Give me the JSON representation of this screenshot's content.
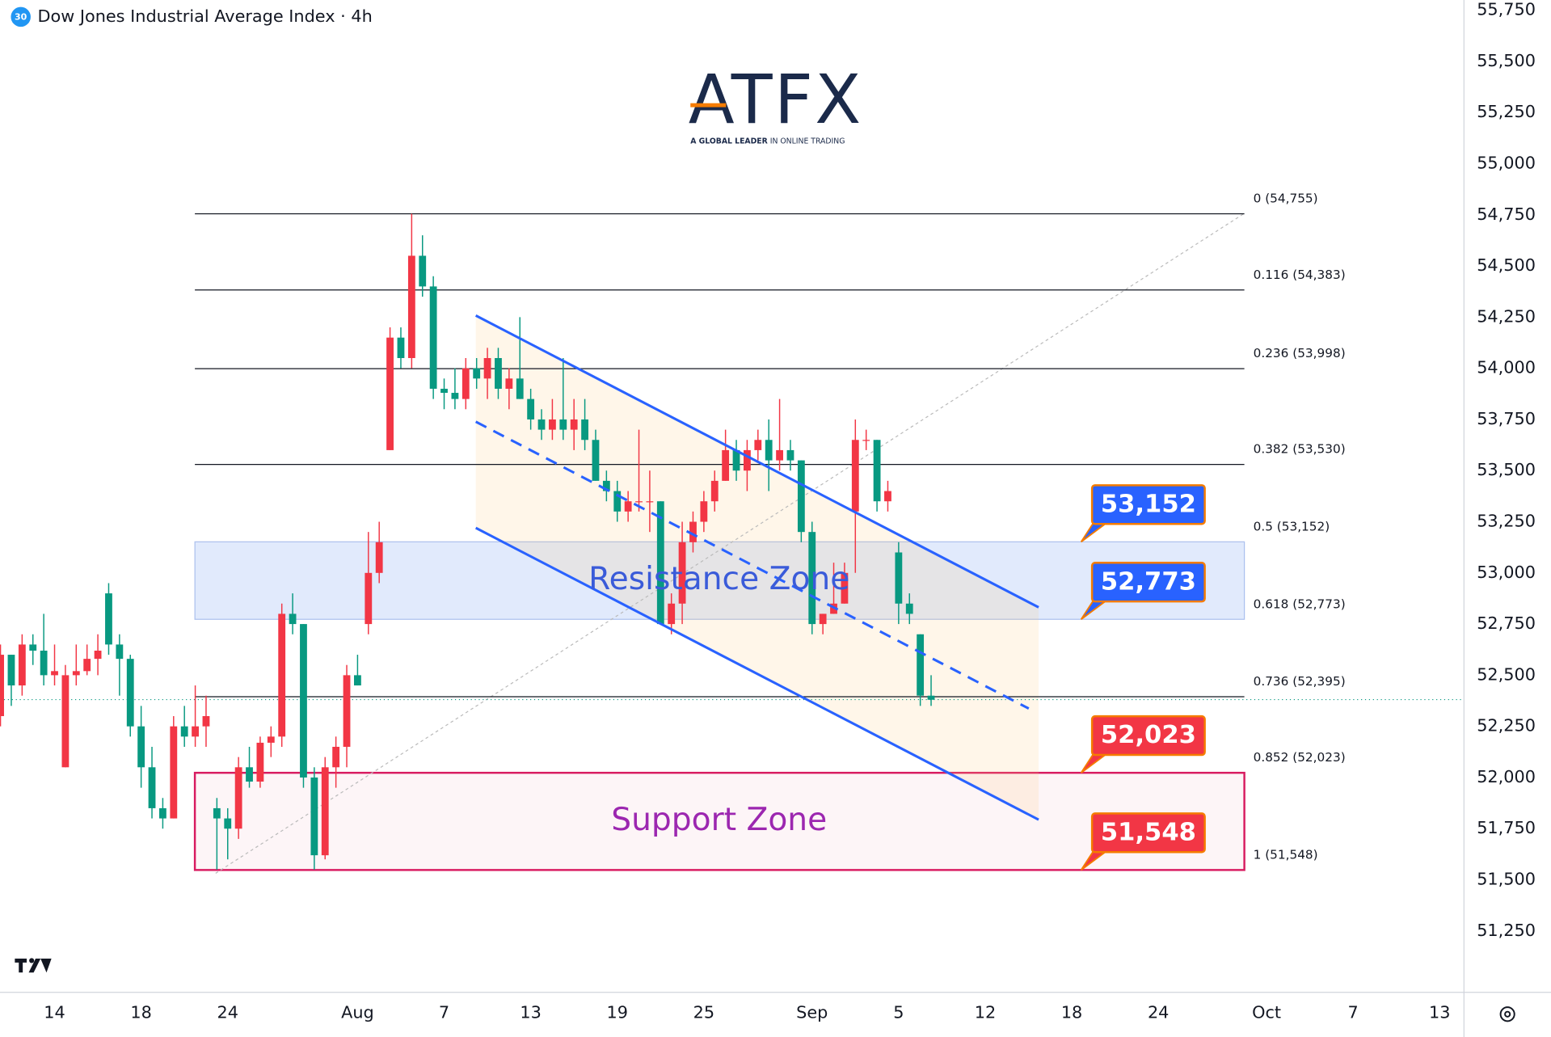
{
  "chart_data": {
    "type": "candlestick",
    "title": "Dow Jones Industrial Average Index · 4h",
    "symbol_badge": "30",
    "logo": {
      "name": "ATFX",
      "tagline_bold": "A GLOBAL LEADER",
      "tagline": " IN ONLINE TRADING"
    },
    "categories": [
      null,
      null,
      null,
      null,
      null,
      "14",
      null,
      null,
      null,
      null,
      null,
      null,
      null,
      "18",
      null,
      null,
      null,
      null,
      null,
      null,
      null,
      "24",
      null,
      null,
      null,
      null,
      null,
      null,
      null,
      null,
      null,
      null,
      null,
      "Aug",
      null,
      null,
      null,
      null,
      null,
      null,
      null,
      "7",
      null,
      null,
      null,
      null,
      null,
      null,
      null,
      "13",
      null,
      null,
      null,
      null,
      null,
      null,
      null,
      "19",
      null,
      null,
      null,
      null,
      null,
      null,
      null,
      "25",
      null,
      null,
      null,
      null,
      null,
      null,
      null,
      null,
      null,
      "Sep",
      null,
      null,
      null,
      null,
      null,
      null,
      null,
      "5",
      null,
      null,
      null,
      null,
      null,
      null,
      null,
      "12",
      null,
      null,
      null,
      null,
      null,
      null,
      null,
      "18",
      null,
      null,
      null,
      null,
      null,
      null,
      null,
      "24",
      null,
      null,
      null,
      null,
      null,
      null,
      null,
      null,
      null,
      "Oct",
      null,
      null,
      null,
      null,
      null,
      null,
      null,
      "7",
      null,
      null,
      null,
      null,
      null,
      null,
      null,
      "13",
      null
    ],
    "open": [
      52300,
      52600,
      52450,
      52650,
      52620,
      52500,
      52050,
      52500,
      52520,
      52580,
      52900,
      52650,
      52580,
      52250,
      52050,
      51850,
      51800,
      52250,
      52200,
      52250,
      51850,
      51800,
      51750,
      52050,
      51980,
      52170,
      52200,
      52800,
      52750,
      52000,
      51620,
      52050,
      52150,
      52500,
      52750,
      53000,
      53600,
      54150,
      54050,
      54550,
      54400,
      53900,
      53880,
      53850,
      54000,
      53950,
      54050,
      53900,
      53950,
      53850,
      53750,
      53700,
      53750,
      53700,
      53750,
      53650,
      53450,
      53400,
      53300,
      53350,
      53350,
      53350,
      52750,
      52850,
      53150,
      53250,
      53350,
      53450,
      53600,
      53500,
      53600,
      53650,
      53550,
      53600,
      53550,
      53200,
      52750,
      52800,
      52850,
      53300,
      53650,
      53650,
      53350,
      53100,
      52850,
      52700,
      52400,
      null,
      null,
      null,
      null,
      null,
      null,
      null,
      null,
      null,
      null,
      null,
      null,
      null,
      null,
      null,
      null,
      null,
      null,
      null,
      null,
      null,
      null,
      null,
      null,
      null,
      null,
      null,
      null,
      null,
      null,
      null,
      null,
      null,
      null,
      null,
      null,
      null,
      null,
      null,
      null,
      null,
      null,
      null,
      null,
      null,
      null,
      null,
      null
    ],
    "high": [
      52650,
      52600,
      52700,
      52700,
      52800,
      52650,
      52550,
      52650,
      52650,
      52700,
      52950,
      52700,
      52600,
      52350,
      52150,
      51900,
      52300,
      52350,
      52450,
      52400,
      51900,
      51850,
      52100,
      52150,
      52200,
      52250,
      52850,
      52900,
      52750,
      52050,
      52100,
      52200,
      52550,
      52600,
      53200,
      53250,
      54200,
      54200,
      54755,
      54650,
      54450,
      53950,
      54000,
      54050,
      54050,
      54100,
      54100,
      54000,
      54250,
      53900,
      53800,
      53850,
      54050,
      53850,
      53850,
      53700,
      53500,
      53450,
      53400,
      53700,
      53500,
      53350,
      52900,
      53250,
      53300,
      53400,
      53500,
      53700,
      53650,
      53650,
      53700,
      53750,
      53850,
      53650,
      53550,
      53250,
      52800,
      53050,
      53050,
      53750,
      53700,
      53650,
      53450,
      53150,
      52900,
      52700,
      52500,
      null,
      null,
      null,
      null,
      null,
      null,
      null,
      null,
      null,
      null,
      null,
      null,
      null,
      null,
      null,
      null,
      null,
      null,
      null,
      null,
      null,
      null,
      null,
      null,
      null,
      null,
      null,
      null,
      null,
      null,
      null,
      null,
      null,
      null,
      null,
      null,
      null,
      null,
      null,
      null,
      null,
      null,
      null,
      null,
      null,
      null,
      null,
      null
    ],
    "low": [
      52250,
      52350,
      52400,
      52550,
      52450,
      52450,
      52050,
      52450,
      52500,
      52500,
      52600,
      52400,
      52200,
      51950,
      51800,
      51750,
      51800,
      52150,
      52150,
      52150,
      51550,
      51600,
      51700,
      51950,
      51950,
      52100,
      52150,
      52700,
      51950,
      51550,
      51600,
      51950,
      52050,
      52450,
      52700,
      52950,
      53600,
      54000,
      54000,
      54350,
      53850,
      53800,
      53800,
      53800,
      53900,
      53850,
      53850,
      53800,
      53850,
      53700,
      53650,
      53650,
      53650,
      53600,
      53600,
      53450,
      53350,
      53250,
      53250,
      53300,
      53200,
      52750,
      52700,
      52750,
      53100,
      53200,
      53300,
      53450,
      53450,
      53400,
      53550,
      53400,
      53500,
      53500,
      53150,
      52700,
      52700,
      52800,
      52850,
      53000,
      53600,
      53300,
      53300,
      52750,
      52750,
      52350,
      52350,
      null,
      null,
      null,
      null,
      null,
      null,
      null,
      null,
      null,
      null,
      null,
      null,
      null,
      null,
      null,
      null,
      null,
      null,
      null,
      null,
      null,
      null,
      null,
      null,
      null,
      null,
      null,
      null,
      null,
      null,
      null,
      null,
      null,
      null,
      null,
      null,
      null,
      null,
      null,
      null,
      null,
      null,
      null,
      null,
      null,
      null,
      null,
      null
    ],
    "close": [
      52600,
      52450,
      52650,
      52620,
      52500,
      52520,
      52500,
      52520,
      52580,
      52620,
      52650,
      52580,
      52250,
      52050,
      51850,
      51800,
      52250,
      52200,
      52250,
      52300,
      51800,
      51750,
      52050,
      51980,
      52170,
      52200,
      52800,
      52750,
      52000,
      51620,
      52050,
      52150,
      52500,
      52450,
      53000,
      53150,
      54150,
      54050,
      54550,
      54400,
      53900,
      53880,
      53850,
      54000,
      53950,
      54050,
      53900,
      53950,
      53850,
      53750,
      53700,
      53750,
      53700,
      53750,
      53650,
      53450,
      53400,
      53300,
      53350,
      53350,
      53350,
      52750,
      52850,
      53150,
      53250,
      53350,
      53450,
      53600,
      53500,
      53600,
      53650,
      53550,
      53600,
      53550,
      53200,
      52750,
      52800,
      52850,
      53000,
      53650,
      53650,
      53350,
      53400,
      52850,
      52800,
      52400,
      52380,
      null,
      null,
      null,
      null,
      null,
      null,
      null,
      null,
      null,
      null,
      null,
      null,
      null,
      null,
      null,
      null,
      null,
      null,
      null,
      null,
      null,
      null,
      null,
      null,
      null,
      null,
      null,
      null,
      null,
      null,
      null,
      null,
      null,
      null,
      null,
      null,
      null,
      null,
      null,
      null,
      null,
      null,
      null,
      null,
      null,
      null,
      null,
      null
    ],
    "up_color": "#f23645",
    "down_color": "#089981",
    "ylim": [
      50950,
      55800
    ],
    "yticks": [
      {
        "value": 51250,
        "label": "51,250"
      },
      {
        "value": 51500,
        "label": "51,500"
      },
      {
        "value": 51750,
        "label": "51,750"
      },
      {
        "value": 52000,
        "label": "52,000"
      },
      {
        "value": 52250,
        "label": "52,250"
      },
      {
        "value": 52500,
        "label": "52,500"
      },
      {
        "value": 52750,
        "label": "52,750"
      },
      {
        "value": 53000,
        "label": "53,000"
      },
      {
        "value": 53250,
        "label": "53,250"
      },
      {
        "value": 53500,
        "label": "53,500"
      },
      {
        "value": 53750,
        "label": "53,750"
      },
      {
        "value": 54000,
        "label": "54,000"
      },
      {
        "value": 54250,
        "label": "54,250"
      },
      {
        "value": 54500,
        "label": "54,500"
      },
      {
        "value": 54750,
        "label": "54,750"
      },
      {
        "value": 55000,
        "label": "55,000"
      },
      {
        "value": 55250,
        "label": "55,250"
      },
      {
        "value": 55500,
        "label": "55,500"
      },
      {
        "value": 55750,
        "label": "55,750"
      }
    ],
    "grid": true,
    "fib_levels": [
      {
        "value": 54755,
        "label": "0 (54,755)",
        "line": true
      },
      {
        "value": 54383,
        "label": "0.116 (54,383)",
        "line": true
      },
      {
        "value": 53998,
        "label": "0.236 (53,998)",
        "line": true
      },
      {
        "value": 53530,
        "label": "0.382 (53,530)",
        "line": true
      },
      {
        "value": 53152,
        "label": "0.5 (53,152)",
        "line": false
      },
      {
        "value": 52773,
        "label": "0.618 (52,773)",
        "line": false
      },
      {
        "value": 52395,
        "label": "0.736 (52,395)",
        "line": true
      },
      {
        "value": 52023,
        "label": "0.852 (52,023)",
        "line": false
      },
      {
        "value": 51548,
        "label": "1 (51,548)",
        "line": false
      }
    ],
    "zones": [
      {
        "label": "Resistance Zone",
        "from": 52773,
        "to": 53152,
        "fill": "rgba(120,160,240,0.22)",
        "border": "rgba(90,130,220,0.45)",
        "text_color": "#3a5bd9"
      },
      {
        "label": "Support Zone",
        "from": 51548,
        "to": 52023,
        "fill": "rgba(240,160,180,0.10)",
        "border": "#d81b60",
        "text_color": "#9c27b0"
      }
    ],
    "callouts": [
      {
        "value": 53152,
        "label": "53,152",
        "color": "#2962ff"
      },
      {
        "value": 52773,
        "label": "52,773",
        "color": "#2962ff"
      },
      {
        "value": 52023,
        "label": "52,023",
        "color": "#f23645"
      },
      {
        "value": 51548,
        "label": "51,548",
        "color": "#f23645"
      }
    ]
  }
}
